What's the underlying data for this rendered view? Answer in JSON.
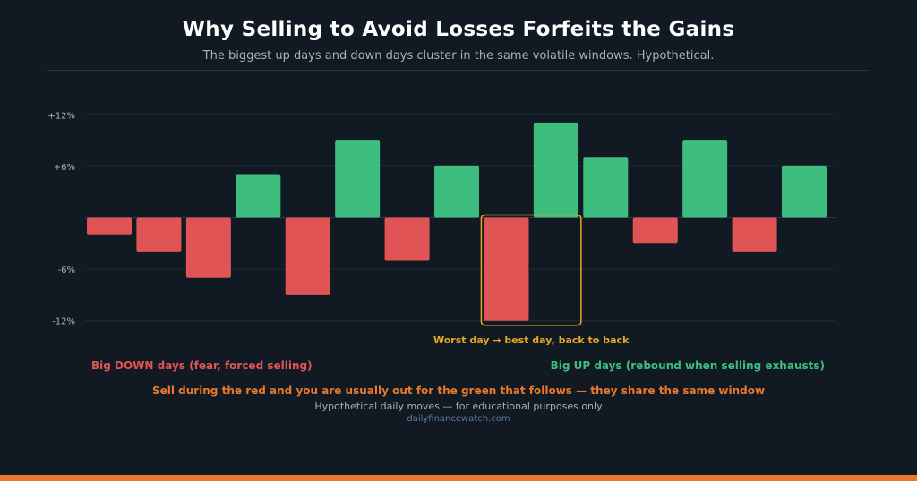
{
  "header": {
    "title": "Why Selling to Avoid Losses Forfeits the Gains",
    "subtitle": "The biggest up days and down days cluster in the same volatile windows. Hypothetical."
  },
  "chart_data": {
    "type": "bar",
    "y_ticks": [
      "+12%",
      "+6%",
      "-6%",
      "-12%"
    ],
    "y_tick_values": [
      12,
      6,
      -6,
      -12
    ],
    "ylim": [
      -12,
      12
    ],
    "values": [
      -2,
      -4,
      -7,
      5,
      -9,
      9,
      -5,
      6,
      -12,
      11,
      7,
      -3,
      9,
      -4,
      6
    ],
    "grid": true,
    "colors": {
      "up": "#3dbe7f",
      "down": "#e05456",
      "highlight": "#e5a823",
      "grid": "#1e2c3a"
    },
    "annotation": {
      "text": "Worst day  →  best day, back to back",
      "bar_indices": [
        8,
        9
      ]
    }
  },
  "legend": {
    "down_label": "Big DOWN days (fear, forced selling)",
    "up_label": "Big UP days (rebound when selling exhausts)"
  },
  "footer": {
    "takeaway": "Sell during the red and you are usually out for the green that follows — they share the same window",
    "disclaimer": "Hypothetical daily moves — for educational purposes only",
    "source": "dailyfinancewatch.com"
  }
}
